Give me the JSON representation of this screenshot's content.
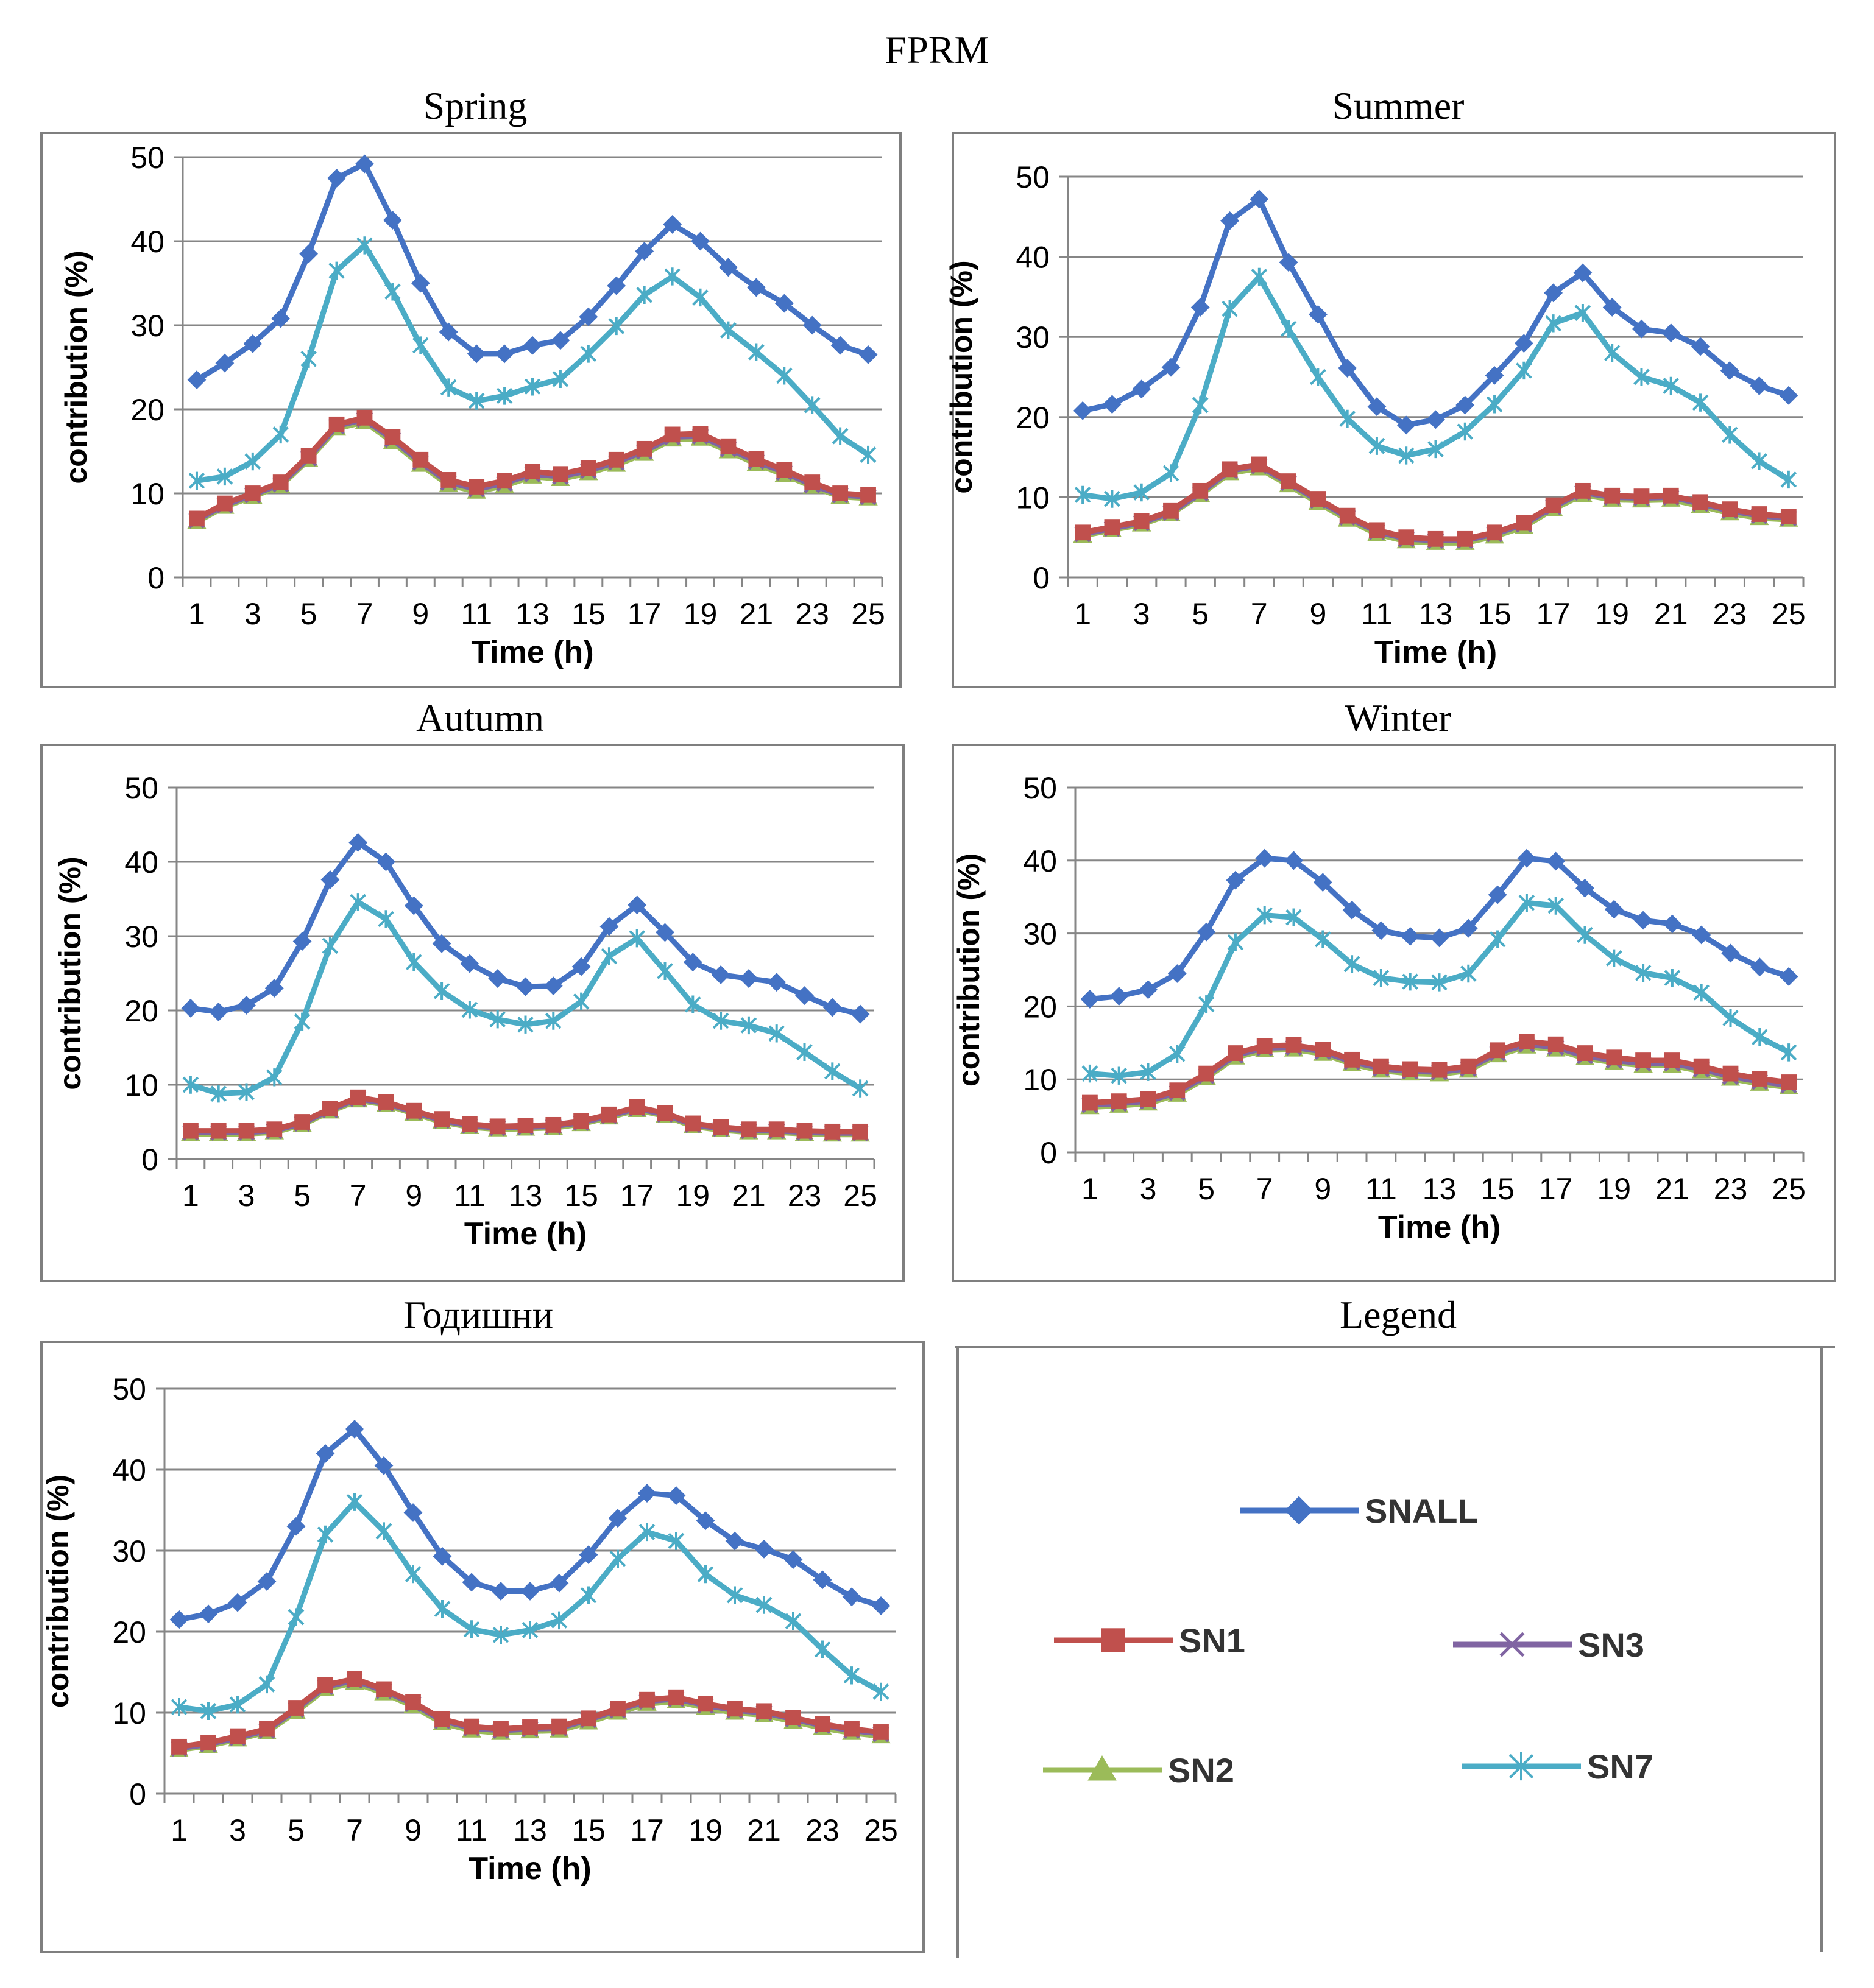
{
  "figure": {
    "title": "FPRM"
  },
  "colors": {
    "SNALL": "#4472C4",
    "SN1": "#C0504D",
    "SN2": "#9BBB59",
    "SN3": "#8064A2",
    "SN7": "#4BACC6",
    "grid": "#868686",
    "axis": "#868686",
    "frame": "#7f7f7f",
    "text": "#000000"
  },
  "legend": {
    "title": "Legend",
    "entries": [
      {
        "key": "SNALL",
        "label": "SNALL",
        "marker": "diamond"
      },
      {
        "key": "SN1",
        "label": "SN1",
        "marker": "square"
      },
      {
        "key": "SN3",
        "label": "SN3",
        "marker": "x"
      },
      {
        "key": "SN2",
        "label": "SN2",
        "marker": "triangle"
      },
      {
        "key": "SN7",
        "label": "SN7",
        "marker": "star"
      }
    ]
  },
  "chart_data": [
    {
      "type": "line",
      "title": "Spring",
      "xlabel": "Time (h)",
      "ylabel": "contribution (%)",
      "ylim": [
        0,
        50
      ],
      "yticks": [
        0,
        10,
        20,
        30,
        40,
        50
      ],
      "xticks": [
        "1",
        "3",
        "5",
        "7",
        "9",
        "11",
        "13",
        "15",
        "17",
        "19",
        "21",
        "23",
        "25"
      ],
      "x": [
        1,
        2,
        3,
        4,
        5,
        6,
        7,
        8,
        9,
        10,
        11,
        12,
        13,
        14,
        15,
        16,
        17,
        18,
        19,
        20,
        21,
        22,
        23,
        24,
        25
      ],
      "grid": true,
      "series": [
        {
          "name": "SNALL",
          "values": [
            23.5,
            25.5,
            27.8,
            30.8,
            38.5,
            47.5,
            49.2,
            42.5,
            35.0,
            29.2,
            26.6,
            26.6,
            27.6,
            28.2,
            31.0,
            34.7,
            38.8,
            42.0,
            40.0,
            36.9,
            34.5,
            32.6,
            30.0,
            27.6,
            26.5
          ]
        },
        {
          "name": "SN7",
          "values": [
            11.5,
            12.0,
            13.8,
            17.0,
            26.0,
            36.5,
            39.5,
            34.0,
            27.6,
            22.6,
            21.0,
            21.6,
            22.7,
            23.6,
            26.6,
            29.9,
            33.6,
            35.8,
            33.3,
            29.4,
            26.8,
            24.0,
            20.5,
            16.8,
            14.6
          ]
        },
        {
          "name": "SN1",
          "values": [
            7.0,
            8.8,
            10.0,
            11.3,
            14.5,
            18.2,
            19.0,
            16.7,
            14.0,
            11.6,
            10.8,
            11.5,
            12.6,
            12.3,
            13.0,
            14.0,
            15.3,
            17.0,
            17.1,
            15.6,
            14.1,
            12.8,
            11.3,
            10.0,
            9.8
          ]
        },
        {
          "name": "SN3",
          "values": [
            6.8,
            8.6,
            9.8,
            11.1,
            14.2,
            18.0,
            18.8,
            16.4,
            13.7,
            11.3,
            10.5,
            11.2,
            12.3,
            12.0,
            12.7,
            13.7,
            15.0,
            16.7,
            16.8,
            15.3,
            13.8,
            12.5,
            11.0,
            9.8,
            9.6
          ]
        },
        {
          "name": "SN2",
          "values": [
            6.6,
            8.4,
            9.6,
            10.9,
            14.0,
            17.7,
            18.5,
            16.1,
            13.4,
            11.0,
            10.2,
            10.9,
            12.0,
            11.7,
            12.4,
            13.4,
            14.7,
            16.4,
            16.5,
            15.0,
            13.5,
            12.2,
            10.8,
            9.6,
            9.4
          ]
        }
      ]
    },
    {
      "type": "line",
      "title": "Summer",
      "xlabel": "Time (h)",
      "ylabel": "contribution (%)",
      "ylim": [
        0,
        50
      ],
      "yticks": [
        0,
        10,
        20,
        30,
        40,
        50
      ],
      "xticks": [
        "1",
        "3",
        "5",
        "7",
        "9",
        "11",
        "13",
        "15",
        "17",
        "19",
        "21",
        "23",
        "25"
      ],
      "x": [
        1,
        2,
        3,
        4,
        5,
        6,
        7,
        8,
        9,
        10,
        11,
        12,
        13,
        14,
        15,
        16,
        17,
        18,
        19,
        20,
        21,
        22,
        23,
        24,
        25
      ],
      "grid": true,
      "series": [
        {
          "name": "SNALL",
          "values": [
            20.8,
            21.6,
            23.5,
            26.2,
            33.7,
            44.5,
            47.2,
            39.3,
            32.8,
            26.1,
            21.3,
            19.0,
            19.7,
            21.5,
            25.2,
            29.2,
            35.5,
            38.0,
            33.7,
            31.0,
            30.5,
            28.8,
            25.8,
            23.9,
            22.7
          ]
        },
        {
          "name": "SN7",
          "values": [
            10.3,
            9.8,
            10.6,
            13.0,
            21.5,
            33.5,
            37.5,
            31.0,
            25.0,
            19.8,
            16.4,
            15.2,
            16.0,
            18.2,
            21.6,
            25.8,
            31.7,
            33.0,
            28.0,
            25.0,
            23.9,
            21.8,
            17.8,
            14.5,
            12.2
          ]
        },
        {
          "name": "SN1",
          "values": [
            5.6,
            6.3,
            7.0,
            8.3,
            10.8,
            13.5,
            14.1,
            12.0,
            9.8,
            7.7,
            5.9,
            5.0,
            4.8,
            4.8,
            5.6,
            6.8,
            9.0,
            10.8,
            10.2,
            10.1,
            10.2,
            9.4,
            8.5,
            7.9,
            7.6
          ]
        },
        {
          "name": "SN3",
          "values": [
            5.4,
            6.1,
            6.8,
            8.1,
            10.5,
            13.3,
            13.9,
            11.8,
            9.6,
            7.5,
            5.7,
            4.8,
            4.6,
            4.6,
            5.4,
            6.6,
            8.8,
            10.6,
            10.0,
            9.9,
            10.0,
            9.2,
            8.3,
            7.7,
            7.4
          ]
        },
        {
          "name": "SN2",
          "values": [
            5.2,
            5.9,
            6.6,
            7.9,
            10.3,
            13.0,
            13.6,
            11.5,
            9.3,
            7.2,
            5.4,
            4.5,
            4.3,
            4.3,
            5.1,
            6.3,
            8.5,
            10.3,
            9.7,
            9.6,
            9.7,
            8.9,
            8.0,
            7.4,
            7.2
          ]
        }
      ]
    },
    {
      "type": "line",
      "title": "Autumn",
      "xlabel": "Time (h)",
      "ylabel": "contribution (%)",
      "ylim": [
        0,
        50
      ],
      "yticks": [
        0,
        10,
        20,
        30,
        40,
        50
      ],
      "xticks": [
        "1",
        "3",
        "5",
        "7",
        "9",
        "11",
        "13",
        "15",
        "17",
        "19",
        "21",
        "23",
        "25"
      ],
      "x": [
        1,
        2,
        3,
        4,
        5,
        6,
        7,
        8,
        9,
        10,
        11,
        12,
        13,
        14,
        15,
        16,
        17,
        18,
        19,
        20,
        21,
        22,
        23,
        24,
        25
      ],
      "grid": true,
      "series": [
        {
          "name": "SNALL",
          "values": [
            20.3,
            19.8,
            20.7,
            23.0,
            29.3,
            37.6,
            42.6,
            40.0,
            34.1,
            29.0,
            26.3,
            24.3,
            23.2,
            23.3,
            25.9,
            31.3,
            34.2,
            30.5,
            26.5,
            24.8,
            24.3,
            23.8,
            22.0,
            20.4,
            19.5
          ]
        },
        {
          "name": "SN7",
          "values": [
            10.0,
            8.8,
            9.0,
            11.0,
            18.5,
            28.7,
            34.6,
            32.3,
            26.5,
            22.6,
            20.1,
            18.8,
            18.1,
            18.6,
            21.2,
            27.3,
            29.7,
            25.3,
            20.8,
            18.6,
            18.0,
            16.9,
            14.4,
            11.8,
            9.5
          ]
        },
        {
          "name": "SN1",
          "values": [
            3.8,
            3.8,
            3.8,
            4.0,
            5.0,
            6.8,
            8.3,
            7.7,
            6.5,
            5.4,
            4.7,
            4.4,
            4.5,
            4.6,
            5.1,
            6.0,
            7.0,
            6.2,
            4.8,
            4.3,
            4.0,
            4.0,
            3.8,
            3.7,
            3.7
          ]
        },
        {
          "name": "SN3",
          "values": [
            3.6,
            3.6,
            3.6,
            3.8,
            4.8,
            6.6,
            8.1,
            7.5,
            6.3,
            5.2,
            4.5,
            4.2,
            4.3,
            4.4,
            4.9,
            5.8,
            6.8,
            6.0,
            4.6,
            4.1,
            3.8,
            3.8,
            3.6,
            3.5,
            3.5
          ]
        },
        {
          "name": "SN2",
          "values": [
            3.4,
            3.4,
            3.4,
            3.6,
            4.6,
            6.4,
            7.9,
            7.3,
            6.1,
            5.0,
            4.3,
            4.0,
            4.1,
            4.2,
            4.7,
            5.6,
            6.6,
            5.8,
            4.4,
            3.9,
            3.6,
            3.6,
            3.4,
            3.3,
            3.3
          ]
        }
      ]
    },
    {
      "type": "line",
      "title": "Winter",
      "xlabel": "Time (h)",
      "ylabel": "contribution (%)",
      "ylim": [
        0,
        50
      ],
      "yticks": [
        0,
        10,
        20,
        30,
        40,
        50
      ],
      "xticks": [
        "1",
        "3",
        "5",
        "7",
        "9",
        "11",
        "13",
        "15",
        "17",
        "19",
        "21",
        "23",
        "25"
      ],
      "x": [
        1,
        2,
        3,
        4,
        5,
        6,
        7,
        8,
        9,
        10,
        11,
        12,
        13,
        14,
        15,
        16,
        17,
        18,
        19,
        20,
        21,
        22,
        23,
        24,
        25
      ],
      "grid": true,
      "series": [
        {
          "name": "SNALL",
          "values": [
            21.0,
            21.4,
            22.3,
            24.5,
            30.2,
            37.3,
            40.3,
            40.0,
            37.0,
            33.2,
            30.4,
            29.6,
            29.4,
            30.7,
            35.3,
            40.3,
            39.9,
            36.2,
            33.3,
            31.8,
            31.3,
            29.8,
            27.3,
            25.4,
            24.1
          ]
        },
        {
          "name": "SN7",
          "values": [
            10.8,
            10.5,
            11.0,
            13.5,
            20.3,
            28.8,
            32.5,
            32.2,
            29.2,
            25.8,
            23.9,
            23.4,
            23.3,
            24.5,
            29.2,
            34.2,
            33.8,
            29.8,
            26.6,
            24.6,
            23.9,
            21.9,
            18.4,
            15.8,
            13.7
          ]
        },
        {
          "name": "SN1",
          "values": [
            6.8,
            7.0,
            7.3,
            8.5,
            10.8,
            13.6,
            14.6,
            14.7,
            14.1,
            12.7,
            11.8,
            11.4,
            11.3,
            11.8,
            14.0,
            15.2,
            14.8,
            13.6,
            13.0,
            12.6,
            12.6,
            11.8,
            10.8,
            10.1,
            9.6
          ]
        },
        {
          "name": "SN3",
          "values": [
            6.5,
            6.7,
            7.0,
            8.2,
            10.5,
            13.3,
            14.3,
            14.4,
            13.8,
            12.4,
            11.5,
            11.1,
            11.0,
            11.5,
            13.6,
            14.8,
            14.4,
            13.2,
            12.6,
            12.2,
            12.2,
            11.4,
            10.4,
            9.7,
            9.2
          ]
        },
        {
          "name": "SN2",
          "values": [
            6.2,
            6.4,
            6.7,
            7.9,
            10.2,
            13.0,
            14.0,
            14.1,
            13.5,
            12.1,
            11.2,
            10.8,
            10.7,
            11.2,
            13.3,
            14.5,
            14.1,
            12.9,
            12.3,
            11.9,
            11.9,
            11.1,
            10.1,
            9.4,
            8.9
          ]
        }
      ]
    },
    {
      "type": "line",
      "title": "Годишни",
      "xlabel": "Time (h)",
      "ylabel": "contribution (%)",
      "ylim": [
        0,
        50
      ],
      "yticks": [
        0,
        10,
        20,
        30,
        40,
        50
      ],
      "xticks": [
        "1",
        "3",
        "5",
        "7",
        "9",
        "11",
        "13",
        "15",
        "17",
        "19",
        "21",
        "23",
        "25"
      ],
      "x": [
        1,
        2,
        3,
        4,
        5,
        6,
        7,
        8,
        9,
        10,
        11,
        12,
        13,
        14,
        15,
        16,
        17,
        18,
        19,
        20,
        21,
        22,
        23,
        24,
        25
      ],
      "grid": true,
      "series": [
        {
          "name": "SNALL",
          "values": [
            21.5,
            22.2,
            23.6,
            26.2,
            33.0,
            42.0,
            45.0,
            40.5,
            34.7,
            29.3,
            26.1,
            25.0,
            25.0,
            26.0,
            29.5,
            34.0,
            37.1,
            36.8,
            33.7,
            31.2,
            30.2,
            28.9,
            26.4,
            24.3,
            23.2
          ]
        },
        {
          "name": "SN7",
          "values": [
            10.7,
            10.2,
            11.0,
            13.5,
            21.8,
            32.0,
            36.0,
            32.4,
            27.1,
            22.8,
            20.3,
            19.6,
            20.2,
            21.4,
            24.5,
            29.0,
            32.3,
            31.2,
            27.1,
            24.5,
            23.3,
            21.3,
            17.8,
            14.6,
            12.6
          ]
        },
        {
          "name": "SN1",
          "values": [
            5.8,
            6.3,
            7.1,
            8.0,
            10.6,
            13.4,
            14.2,
            12.9,
            11.3,
            9.2,
            8.3,
            8.0,
            8.2,
            8.3,
            9.3,
            10.5,
            11.6,
            11.9,
            11.1,
            10.5,
            10.2,
            9.4,
            8.6,
            8.0,
            7.6
          ]
        },
        {
          "name": "SN3",
          "values": [
            5.6,
            6.1,
            6.9,
            7.8,
            10.4,
            13.2,
            14.0,
            12.7,
            11.1,
            9.0,
            8.1,
            7.8,
            8.0,
            8.1,
            9.1,
            10.3,
            11.4,
            11.7,
            10.9,
            10.3,
            10.0,
            9.2,
            8.4,
            7.8,
            7.4
          ]
        },
        {
          "name": "SN2",
          "values": [
            5.4,
            5.9,
            6.7,
            7.6,
            10.1,
            12.9,
            13.7,
            12.4,
            10.8,
            8.7,
            7.8,
            7.5,
            7.7,
            7.8,
            8.8,
            10.0,
            11.1,
            11.4,
            10.6,
            10.0,
            9.7,
            8.9,
            8.1,
            7.5,
            7.1
          ]
        }
      ]
    }
  ]
}
